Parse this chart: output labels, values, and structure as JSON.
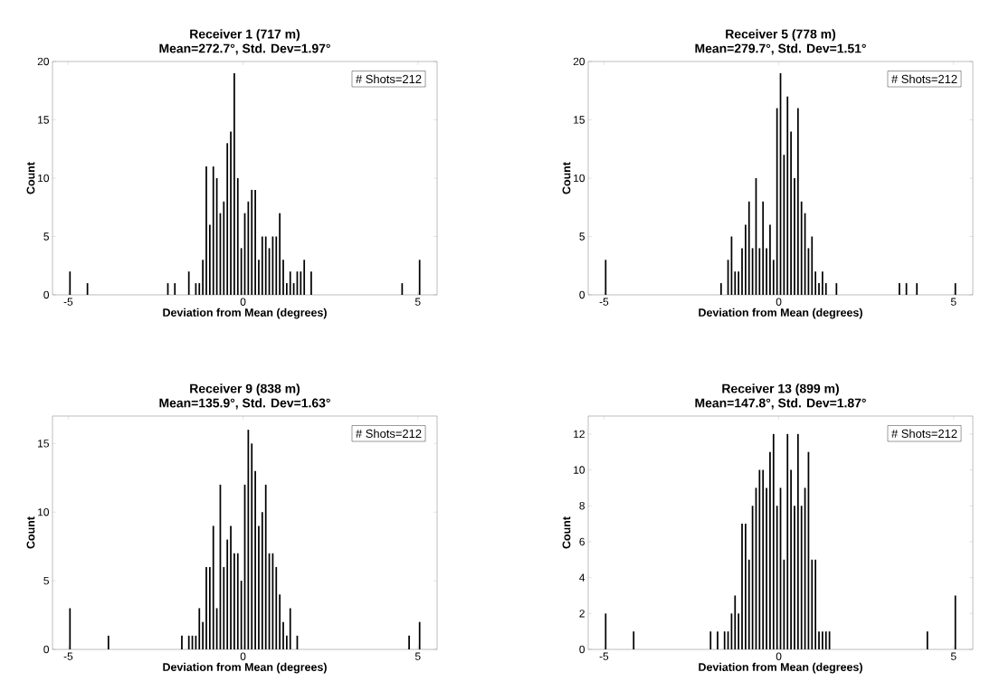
{
  "chart_data": [
    {
      "type": "histogram",
      "title": "Receiver 1 (717 m)",
      "subtitle": "Mean=272.7°, Std. Dev=1.97°",
      "xlabel": "Deviation from Mean (degrees)",
      "ylabel": "Count",
      "annotations": [
        "# Shots=212"
      ],
      "color": "#000000",
      "xlim": [
        -5.45,
        5.55
      ],
      "ylim": [
        0,
        20
      ],
      "xticks": [
        -5,
        0,
        5
      ],
      "yticks": [
        0,
        5,
        10,
        15,
        20
      ],
      "bins": [
        -5.0,
        -4.9,
        -4.8,
        -4.7,
        -4.6,
        -4.5,
        -4.4,
        -4.3,
        -4.2,
        -4.1,
        -4.0,
        -3.9,
        -3.8,
        -3.7,
        -3.6,
        -3.5,
        -3.4,
        -3.3,
        -3.2,
        -3.1,
        -3.0,
        -2.9,
        -2.8,
        -2.7,
        -2.6,
        -2.5,
        -2.4,
        -2.3,
        -2.2,
        -2.1,
        -2.0,
        -1.9,
        -1.8,
        -1.7,
        -1.6,
        -1.5,
        -1.4,
        -1.3,
        -1.2,
        -1.1,
        -1.0,
        -0.9,
        -0.8,
        -0.7,
        -0.6,
        -0.5,
        -0.4,
        -0.3,
        -0.2,
        -0.1,
        0.0,
        0.1,
        0.2,
        0.3,
        0.4,
        0.5,
        0.6,
        0.7,
        0.8,
        0.9,
        1.0,
        1.1,
        1.2,
        1.3,
        1.4,
        1.5,
        1.6,
        1.7,
        1.8,
        1.9,
        2.0,
        2.1,
        2.2,
        2.3,
        2.4,
        2.5,
        2.6,
        2.7,
        2.8,
        2.9,
        3.0,
        3.1,
        3.2,
        3.3,
        3.4,
        3.5,
        3.6,
        3.7,
        3.8,
        3.9,
        4.0,
        4.1,
        4.2,
        4.3,
        4.4,
        4.5,
        4.6,
        4.7,
        4.8,
        4.9,
        5.0,
        5.1
      ],
      "values": [
        2,
        0,
        0,
        0,
        0,
        1,
        0,
        0,
        0,
        0,
        0,
        0,
        0,
        0,
        0,
        0,
        0,
        0,
        0,
        0,
        0,
        0,
        0,
        0,
        0,
        0,
        0,
        0,
        1,
        0,
        1,
        0,
        0,
        0,
        2,
        0,
        1,
        1,
        3,
        11,
        6,
        11,
        10,
        7,
        8,
        13,
        14,
        19,
        10,
        4,
        7,
        8,
        9,
        9,
        3,
        5,
        5,
        4,
        5,
        5,
        7,
        3,
        1,
        2,
        1,
        2,
        2,
        3,
        0,
        2,
        0,
        0,
        0,
        0,
        0,
        0,
        0,
        0,
        0,
        0,
        0,
        0,
        0,
        0,
        0,
        0,
        0,
        0,
        0,
        0,
        0,
        0,
        0,
        0,
        0,
        1,
        0,
        0,
        0,
        0,
        3
      ]
    },
    {
      "type": "histogram",
      "title": "Receiver 5 (778 m)",
      "subtitle": "Mean=279.7°, Std. Dev=1.51°",
      "xlabel": "Deviation from Mean (degrees)",
      "ylabel": "Count",
      "annotations": [
        "# Shots=212"
      ],
      "color": "#000000",
      "xlim": [
        -5.45,
        5.55
      ],
      "ylim": [
        0,
        20
      ],
      "xticks": [
        -5,
        0,
        5
      ],
      "yticks": [
        0,
        5,
        10,
        15,
        20
      ],
      "bins": [
        -5.0,
        -4.9,
        -4.8,
        -4.7,
        -4.6,
        -4.5,
        -4.4,
        -4.3,
        -4.2,
        -4.1,
        -4.0,
        -3.9,
        -3.8,
        -3.7,
        -3.6,
        -3.5,
        -3.4,
        -3.3,
        -3.2,
        -3.1,
        -3.0,
        -2.9,
        -2.8,
        -2.7,
        -2.6,
        -2.5,
        -2.4,
        -2.3,
        -2.2,
        -2.1,
        -2.0,
        -1.9,
        -1.8,
        -1.7,
        -1.6,
        -1.5,
        -1.4,
        -1.3,
        -1.2,
        -1.1,
        -1.0,
        -0.9,
        -0.8,
        -0.7,
        -0.6,
        -0.5,
        -0.4,
        -0.3,
        -0.2,
        -0.1,
        0.0,
        0.1,
        0.2,
        0.3,
        0.4,
        0.5,
        0.6,
        0.7,
        0.8,
        0.9,
        1.0,
        1.1,
        1.2,
        1.3,
        1.4,
        1.5,
        1.6,
        1.7,
        1.8,
        1.9,
        2.0,
        2.1,
        2.2,
        2.3,
        2.4,
        2.5,
        2.6,
        2.7,
        2.8,
        2.9,
        3.0,
        3.1,
        3.2,
        3.3,
        3.4,
        3.5,
        3.6,
        3.7,
        3.8,
        3.9,
        4.0,
        4.1,
        4.2,
        4.3,
        4.4,
        4.5,
        4.6,
        4.7,
        4.8,
        4.9,
        5.0,
        5.1
      ],
      "values": [
        3,
        0,
        0,
        0,
        0,
        0,
        0,
        0,
        0,
        0,
        0,
        0,
        0,
        0,
        0,
        0,
        0,
        0,
        0,
        0,
        0,
        0,
        0,
        0,
        0,
        0,
        0,
        0,
        0,
        0,
        0,
        0,
        0,
        1,
        0,
        3,
        5,
        2,
        2,
        4,
        6,
        8,
        4,
        10,
        4,
        8,
        4,
        6,
        3,
        16,
        19,
        12,
        17,
        14,
        10,
        16,
        8,
        7,
        4,
        5,
        2,
        1,
        2,
        1,
        0,
        0,
        1,
        0,
        0,
        0,
        0,
        0,
        0,
        0,
        0,
        0,
        0,
        0,
        0,
        0,
        0,
        0,
        0,
        0,
        1,
        0,
        1,
        0,
        0,
        1,
        0,
        0,
        0,
        0,
        0,
        0,
        0,
        0,
        0,
        0,
        1
      ]
    },
    {
      "type": "histogram",
      "title": "Receiver 9 (838 m)",
      "subtitle": "Mean=135.9°, Std. Dev=1.63°",
      "xlabel": "Deviation from Mean (degrees)",
      "ylabel": "Count",
      "annotations": [
        "# Shots=212"
      ],
      "color": "#000000",
      "xlim": [
        -5.45,
        5.55
      ],
      "ylim": [
        0,
        17
      ],
      "xticks": [
        -5,
        0,
        5
      ],
      "yticks": [
        0,
        5,
        10,
        15
      ],
      "bins": [
        -5.0,
        -4.9,
        -4.8,
        -4.7,
        -4.6,
        -4.5,
        -4.4,
        -4.3,
        -4.2,
        -4.1,
        -4.0,
        -3.9,
        -3.8,
        -3.7,
        -3.6,
        -3.5,
        -3.4,
        -3.3,
        -3.2,
        -3.1,
        -3.0,
        -2.9,
        -2.8,
        -2.7,
        -2.6,
        -2.5,
        -2.4,
        -2.3,
        -2.2,
        -2.1,
        -2.0,
        -1.9,
        -1.8,
        -1.7,
        -1.6,
        -1.5,
        -1.4,
        -1.3,
        -1.2,
        -1.1,
        -1.0,
        -0.9,
        -0.8,
        -0.7,
        -0.6,
        -0.5,
        -0.4,
        -0.3,
        -0.2,
        -0.1,
        0.0,
        0.1,
        0.2,
        0.3,
        0.4,
        0.5,
        0.6,
        0.7,
        0.8,
        0.9,
        1.0,
        1.1,
        1.2,
        1.3,
        1.4,
        1.5,
        1.6,
        1.7,
        1.8,
        1.9,
        2.0,
        2.1,
        2.2,
        2.3,
        2.4,
        2.5,
        2.6,
        2.7,
        2.8,
        2.9,
        3.0,
        3.1,
        3.2,
        3.3,
        3.4,
        3.5,
        3.6,
        3.7,
        3.8,
        3.9,
        4.0,
        4.1,
        4.2,
        4.3,
        4.4,
        4.5,
        4.6,
        4.7,
        4.8,
        4.9,
        5.0,
        5.1
      ],
      "values": [
        3,
        0,
        0,
        0,
        0,
        0,
        0,
        0,
        0,
        0,
        0,
        1,
        0,
        0,
        0,
        0,
        0,
        0,
        0,
        0,
        0,
        0,
        0,
        0,
        0,
        0,
        0,
        0,
        0,
        0,
        0,
        0,
        1,
        0,
        1,
        1,
        1,
        3,
        2,
        6,
        6,
        9,
        3,
        12,
        6,
        8,
        9,
        7,
        7,
        5,
        12,
        16,
        15,
        13,
        9,
        10,
        12,
        7,
        7,
        6,
        4,
        2,
        1,
        3,
        0,
        1,
        0,
        0,
        0,
        0,
        0,
        0,
        0,
        0,
        0,
        0,
        0,
        0,
        0,
        0,
        0,
        0,
        0,
        0,
        0,
        0,
        0,
        0,
        0,
        0,
        0,
        0,
        0,
        0,
        0,
        0,
        0,
        1,
        0,
        0,
        2
      ]
    },
    {
      "type": "histogram",
      "title": "Receiver 13 (899 m)",
      "subtitle": "Mean=147.8°, Std. Dev=1.87°",
      "xlabel": "Deviation from Mean (degrees)",
      "ylabel": "Count",
      "annotations": [
        "# Shots=212"
      ],
      "color": "#000000",
      "xlim": [
        -5.45,
        5.55
      ],
      "ylim": [
        0,
        13
      ],
      "xticks": [
        -5,
        0,
        5
      ],
      "yticks": [
        0,
        2,
        4,
        6,
        8,
        10,
        12
      ],
      "bins": [
        -5.0,
        -4.9,
        -4.8,
        -4.7,
        -4.6,
        -4.5,
        -4.4,
        -4.3,
        -4.2,
        -4.1,
        -4.0,
        -3.9,
        -3.8,
        -3.7,
        -3.6,
        -3.5,
        -3.4,
        -3.3,
        -3.2,
        -3.1,
        -3.0,
        -2.9,
        -2.8,
        -2.7,
        -2.6,
        -2.5,
        -2.4,
        -2.3,
        -2.2,
        -2.1,
        -2.0,
        -1.9,
        -1.8,
        -1.7,
        -1.6,
        -1.5,
        -1.4,
        -1.3,
        -1.2,
        -1.1,
        -1.0,
        -0.9,
        -0.8,
        -0.7,
        -0.6,
        -0.5,
        -0.4,
        -0.3,
        -0.2,
        -0.1,
        0.0,
        0.1,
        0.2,
        0.3,
        0.4,
        0.5,
        0.6,
        0.7,
        0.8,
        0.9,
        1.0,
        1.1,
        1.2,
        1.3,
        1.4,
        1.5,
        1.6,
        1.7,
        1.8,
        1.9,
        2.0,
        2.1,
        2.2,
        2.3,
        2.4,
        2.5,
        2.6,
        2.7,
        2.8,
        2.9,
        3.0,
        3.1,
        3.2,
        3.3,
        3.4,
        3.5,
        3.6,
        3.7,
        3.8,
        3.9,
        4.0,
        4.1,
        4.2,
        4.3,
        4.4,
        4.5,
        4.6,
        4.7,
        4.8,
        4.9,
        5.0,
        5.1
      ],
      "values": [
        2,
        0,
        0,
        0,
        0,
        0,
        0,
        0,
        1,
        0,
        0,
        0,
        0,
        0,
        0,
        0,
        0,
        0,
        0,
        0,
        0,
        0,
        0,
        0,
        0,
        0,
        0,
        0,
        0,
        0,
        1,
        0,
        1,
        0,
        1,
        1,
        2,
        3,
        2,
        7,
        7,
        5,
        8,
        9,
        10,
        10,
        9,
        11,
        12,
        8,
        9,
        5,
        12,
        10,
        8,
        12,
        8,
        9,
        11,
        5,
        5,
        1,
        1,
        1,
        1,
        0,
        0,
        0,
        0,
        0,
        0,
        0,
        0,
        0,
        0,
        0,
        0,
        0,
        0,
        0,
        0,
        0,
        0,
        0,
        0,
        0,
        0,
        0,
        0,
        0,
        0,
        0,
        1,
        0,
        0,
        0,
        0,
        0,
        0,
        0,
        3
      ]
    }
  ]
}
